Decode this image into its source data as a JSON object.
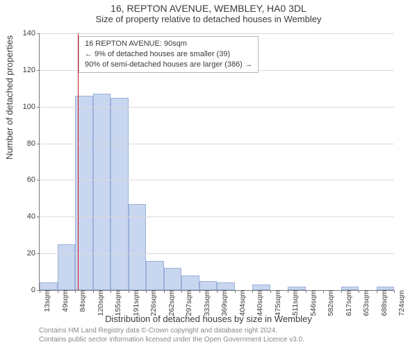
{
  "title_line1": "16, REPTON AVENUE, WEMBLEY, HA0 3DL",
  "title_line2": "Size of property relative to detached houses in Wembley",
  "y_axis_label": "Number of detached properties",
  "x_axis_label": "Distribution of detached houses by size in Wembley",
  "legend_lines": [
    "16 REPTON AVENUE: 90sqm",
    "← 9% of detached houses are smaller (39)",
    "90% of semi-detached houses are larger (386) →"
  ],
  "footer_lines": [
    "Contains HM Land Registry data © Crown copyright and database right 2024.",
    "Contains public sector information licensed under the Open Government Licence v3.0."
  ],
  "chart": {
    "type": "histogram",
    "ylim": [
      0,
      140
    ],
    "ytick_step": 20,
    "bar_fill": "#c9d6ef",
    "bar_stroke": "#9ab0db",
    "grid_color": "#d9d9d9",
    "axis_color": "#777777",
    "marker_value": 90,
    "marker_color": "#d11919",
    "x_start": 13,
    "x_bin_width": 35.55,
    "x_labels": [
      "13sqm",
      "49sqm",
      "84sqm",
      "120sqm",
      "155sqm",
      "191sqm",
      "226sqm",
      "262sqm",
      "297sqm",
      "333sqm",
      "369sqm",
      "404sqm",
      "440sqm",
      "475sqm",
      "511sqm",
      "546sqm",
      "582sqm",
      "617sqm",
      "653sqm",
      "688sqm",
      "724sqm"
    ],
    "values": [
      4,
      25,
      106,
      107,
      105,
      47,
      16,
      12,
      8,
      5,
      4,
      0,
      3,
      0,
      2,
      0,
      0,
      2,
      0,
      2
    ],
    "label_fontsize": 11,
    "title_fontsize": 14
  }
}
